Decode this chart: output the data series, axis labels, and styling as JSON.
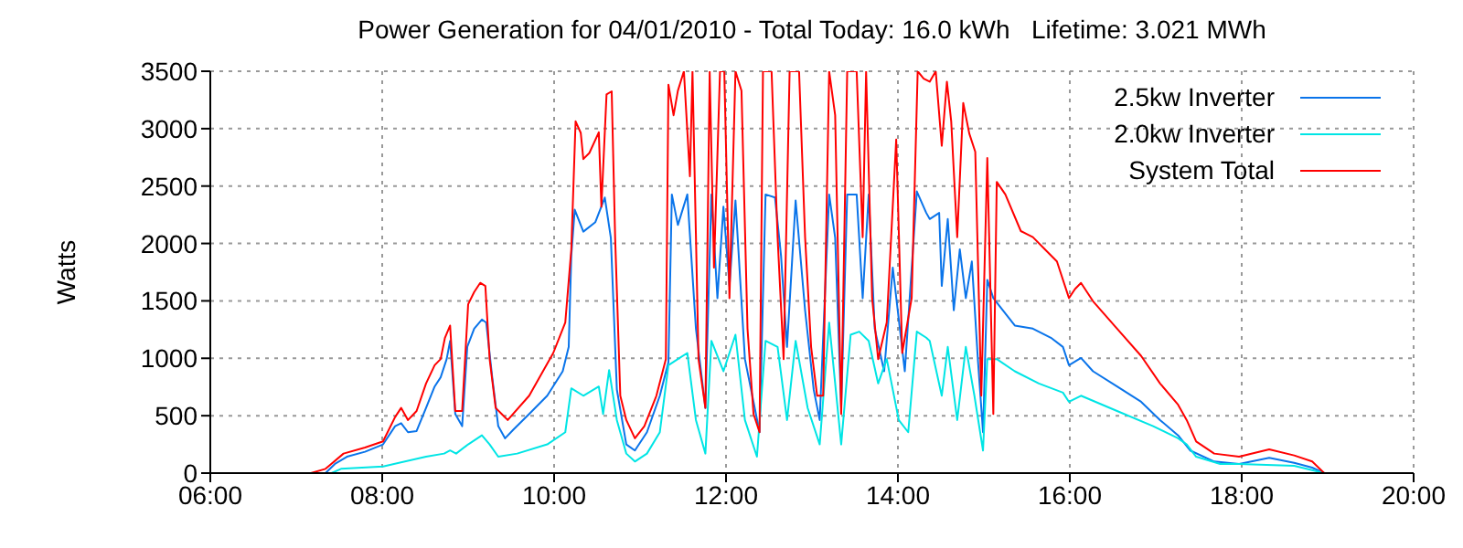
{
  "chart_data": {
    "type": "line",
    "title": "Power Generation for 04/01/2010 - Total Today: 16.0 kWh   Lifetime: 3.021 MWh",
    "ylabel": "Watts",
    "xlim": [
      6,
      20
    ],
    "xticks": [
      {
        "value": 6,
        "label": "06:00"
      },
      {
        "value": 8,
        "label": "08:00"
      },
      {
        "value": 10,
        "label": "10:00"
      },
      {
        "value": 12,
        "label": "12:00"
      },
      {
        "value": 14,
        "label": "14:00"
      },
      {
        "value": 16,
        "label": "16:00"
      },
      {
        "value": 18,
        "label": "18:00"
      },
      {
        "value": 20,
        "label": "20:00"
      }
    ],
    "ylim": [
      0,
      3500
    ],
    "yticks": [
      0,
      500,
      1000,
      1500,
      2000,
      2500,
      3000,
      3500
    ],
    "grid": true,
    "legend": "top right",
    "marker": "none",
    "line_style": "solid",
    "series": [
      {
        "name": "2.5kw Inverter",
        "color": "#0a74ea",
        "x": [
          7.34,
          7.45,
          7.59,
          7.8,
          8.01,
          8.15,
          8.22,
          8.3,
          8.4,
          8.51,
          8.61,
          8.68,
          8.75,
          8.79,
          8.85,
          8.93,
          8.99,
          9.07,
          9.16,
          9.21,
          9.28,
          9.35,
          9.43,
          9.53,
          9.71,
          9.92,
          10.1,
          10.17,
          10.2,
          10.24,
          10.34,
          10.48,
          10.59,
          10.66,
          10.73,
          10.84,
          10.94,
          11.08,
          11.23,
          11.33,
          11.37,
          11.44,
          11.55,
          11.65,
          11.76,
          11.83,
          11.9,
          11.97,
          12.04,
          12.11,
          12.22,
          12.32,
          12.39,
          12.46,
          12.57,
          12.64,
          12.71,
          12.81,
          12.92,
          13.02,
          13.09,
          13.2,
          13.27,
          13.34,
          13.41,
          13.52,
          13.59,
          13.66,
          13.73,
          13.84,
          13.94,
          14.08,
          14.22,
          14.33,
          14.37,
          14.48,
          14.51,
          14.58,
          14.65,
          14.72,
          14.79,
          14.86,
          14.93,
          14.99,
          15.04,
          15.11,
          15.22,
          15.36,
          15.57,
          15.78,
          15.92,
          15.99,
          16.13,
          16.27,
          16.55,
          16.83,
          17.05,
          17.26,
          17.4,
          17.68,
          17.97,
          18.32,
          18.61,
          18.82,
          18.96
        ],
        "values": [
          0,
          80,
          143,
          186,
          250,
          409,
          435,
          356,
          366,
          567,
          754,
          834,
          993,
          1152,
          515,
          409,
          1100,
          1258,
          1338,
          1311,
          834,
          409,
          303,
          382,
          515,
          674,
          887,
          1099,
          1895,
          2294,
          2103,
          2186,
          2400,
          2050,
          728,
          250,
          197,
          356,
          674,
          966,
          2427,
          2161,
          2427,
          1258,
          567,
          2427,
          1524,
          2320,
          1630,
          2374,
          993,
          621,
          356,
          2427,
          2400,
          1895,
          1099,
          2374,
          1418,
          728,
          462,
          2427,
          2050,
          567,
          2427,
          2427,
          1524,
          2427,
          1258,
          887,
          1790,
          887,
          2453,
          2266,
          2213,
          2266,
          1630,
          2213,
          1418,
          1949,
          1524,
          1843,
          993,
          356,
          1683,
          1524,
          1418,
          1285,
          1258,
          1179,
          1099,
          940,
          1003,
          887,
          754,
          621,
          462,
          329,
          197,
          101,
          80,
          133,
          90,
          48,
          0
        ]
      },
      {
        "name": "2.0kw Inverter",
        "color": "#00e5e5",
        "x": [
          7.41,
          7.52,
          8.01,
          8.51,
          8.72,
          8.79,
          8.86,
          9.0,
          9.16,
          9.25,
          9.35,
          9.57,
          9.92,
          10.13,
          10.2,
          10.34,
          10.52,
          10.57,
          10.64,
          10.73,
          10.84,
          10.94,
          11.08,
          11.23,
          11.33,
          11.44,
          11.55,
          11.65,
          11.76,
          11.83,
          11.97,
          12.11,
          12.22,
          12.36,
          12.46,
          12.6,
          12.71,
          12.81,
          12.95,
          13.09,
          13.2,
          13.34,
          13.45,
          13.55,
          13.66,
          13.77,
          13.87,
          14.01,
          14.12,
          14.22,
          14.33,
          14.37,
          14.51,
          14.58,
          14.69,
          14.79,
          14.89,
          14.99,
          15.04,
          15.15,
          15.36,
          15.64,
          15.92,
          15.99,
          16.13,
          16.55,
          16.97,
          17.26,
          17.36,
          17.47,
          17.75,
          17.97,
          18.61,
          18.96
        ],
        "values": [
          0,
          37,
          58,
          143,
          170,
          197,
          170,
          250,
          329,
          250,
          143,
          170,
          250,
          356,
          738,
          674,
          754,
          515,
          897,
          462,
          170,
          101,
          170,
          356,
          940,
          993,
          1046,
          462,
          170,
          1152,
          887,
          1205,
          462,
          143,
          1152,
          1099,
          462,
          1152,
          567,
          250,
          1311,
          250,
          1205,
          1232,
          1152,
          781,
          993,
          462,
          356,
          1232,
          1179,
          1152,
          674,
          1099,
          462,
          1099,
          674,
          197,
          993,
          993,
          887,
          781,
          701,
          621,
          674,
          541,
          409,
          303,
          250,
          143,
          80,
          80,
          64,
          0
        ]
      },
      {
        "name": "System Total",
        "color": "#ff0000",
        "x": [
          7.17,
          7.34,
          7.55,
          7.8,
          8.01,
          8.15,
          8.22,
          8.3,
          8.4,
          8.51,
          8.61,
          8.68,
          8.73,
          8.79,
          8.85,
          8.93,
          9.0,
          9.07,
          9.14,
          9.2,
          9.25,
          9.32,
          9.39,
          9.46,
          9.71,
          9.99,
          10.13,
          10.2,
          10.25,
          10.31,
          10.34,
          10.41,
          10.52,
          10.55,
          10.61,
          10.67,
          10.71,
          10.77,
          10.84,
          10.94,
          11.05,
          11.19,
          11.3,
          11.33,
          11.39,
          11.44,
          11.51,
          11.58,
          11.61,
          11.68,
          11.76,
          11.81,
          11.86,
          11.93,
          11.98,
          12.04,
          12.11,
          12.18,
          12.25,
          12.32,
          12.39,
          12.43,
          12.53,
          12.6,
          12.67,
          12.74,
          12.85,
          12.92,
          12.99,
          13.06,
          13.13,
          13.2,
          13.27,
          13.34,
          13.41,
          13.52,
          13.59,
          13.63,
          13.7,
          13.77,
          13.87,
          13.98,
          14.05,
          14.16,
          14.23,
          14.3,
          14.37,
          14.44,
          14.51,
          14.57,
          14.62,
          14.69,
          14.76,
          14.83,
          14.9,
          14.97,
          15.04,
          15.11,
          15.15,
          15.25,
          15.43,
          15.57,
          15.71,
          15.85,
          15.99,
          16.06,
          16.13,
          16.27,
          16.55,
          16.83,
          17.05,
          17.26,
          17.36,
          17.47,
          17.68,
          17.97,
          18.32,
          18.61,
          18.82,
          18.96
        ],
        "values": [
          0,
          37,
          170,
          223,
          276,
          488,
          568,
          462,
          541,
          781,
          940,
          993,
          1179,
          1285,
          541,
          541,
          1471,
          1577,
          1657,
          1630,
          993,
          568,
          515,
          462,
          674,
          1046,
          1311,
          1949,
          3064,
          2963,
          2735,
          2788,
          2968,
          2320,
          3298,
          3325,
          2050,
          674,
          462,
          303,
          409,
          674,
          993,
          3383,
          3117,
          3330,
          3500,
          2586,
          3500,
          993,
          568,
          3500,
          1790,
          3500,
          3500,
          1524,
          3500,
          3330,
          1258,
          515,
          356,
          3500,
          3500,
          2055,
          993,
          3500,
          3500,
          2055,
          1099,
          674,
          674,
          3500,
          3117,
          515,
          3500,
          3500,
          2055,
          3500,
          1524,
          993,
          1312,
          2905,
          1046,
          1524,
          3500,
          3436,
          3409,
          3500,
          2851,
          3409,
          3064,
          2055,
          3224,
          2958,
          2798,
          674,
          2745,
          515,
          2536,
          2427,
          2108,
          2055,
          1949,
          1843,
          1524,
          1603,
          1656,
          1497,
          1258,
          1020,
          781,
          595,
          462,
          276,
          170,
          143,
          207,
          154,
          101,
          0
        ]
      }
    ]
  }
}
